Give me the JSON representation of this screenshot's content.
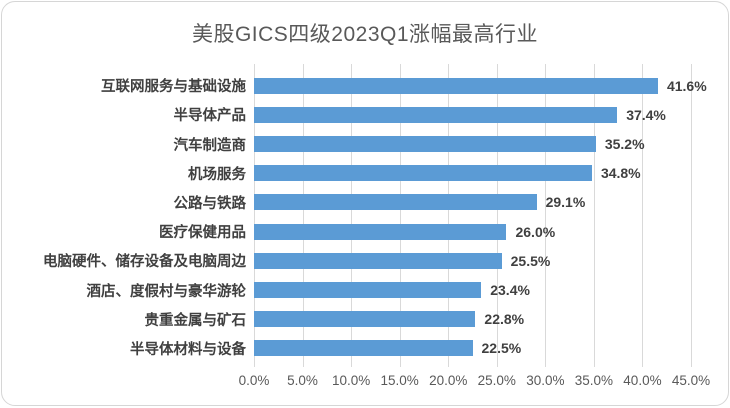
{
  "chart_data": {
    "type": "bar",
    "orientation": "horizontal",
    "title": "美股GICS四级2023Q1涨幅最高行业",
    "categories": [
      "互联网服务与基础设施",
      "半导体产品",
      "汽车制造商",
      "机场服务",
      "公路与铁路",
      "医疗保健用品",
      "电脑硬件、储存设备及电脑周边",
      "酒店、度假村与豪华游轮",
      "贵重金属与矿石",
      "半导体材料与设备"
    ],
    "values": [
      41.6,
      37.4,
      35.2,
      34.8,
      29.1,
      26.0,
      25.5,
      23.4,
      22.8,
      22.5
    ],
    "value_labels": [
      "41.6%",
      "37.4%",
      "35.2%",
      "34.8%",
      "29.1%",
      "26.0%",
      "25.5%",
      "23.4%",
      "22.8%",
      "22.5%"
    ],
    "xlabel": "",
    "ylabel": "",
    "xlim": [
      0,
      45
    ],
    "x_tick_labels": [
      "0.0%",
      "5.0%",
      "10.0%",
      "15.0%",
      "20.0%",
      "25.0%",
      "30.0%",
      "35.0%",
      "40.0%",
      "45.0%"
    ],
    "x_tick_values": [
      0,
      5,
      10,
      15,
      20,
      25,
      30,
      35,
      40,
      45
    ],
    "grid": "vertical",
    "legend": "none",
    "colors": {
      "bar": "#5b9bd5",
      "title": "#595959",
      "category_label": "#404040",
      "value_label": "#404040",
      "tick_label": "#595959",
      "gridline": "#d9d9d9",
      "frame_border": "#d6d6d6",
      "background": "#ffffff"
    }
  }
}
